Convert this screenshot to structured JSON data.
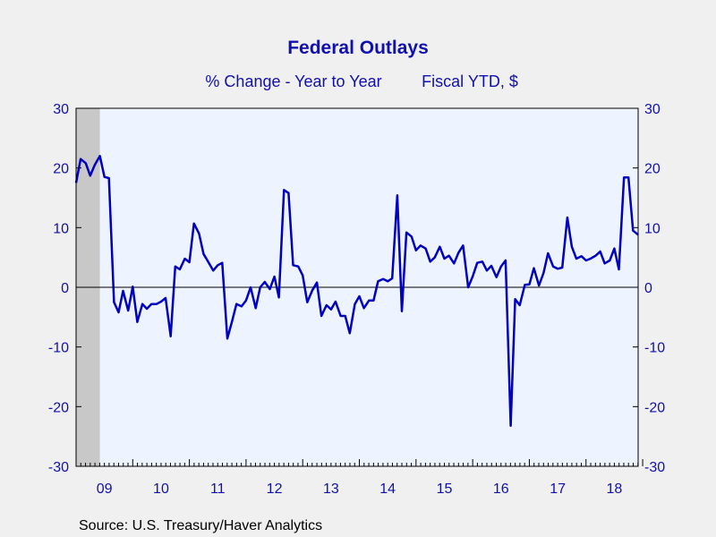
{
  "colors": {
    "background": "#f0f0f0",
    "plot_background": "#eef4ff",
    "text": "#1010b0",
    "line": "#0000c0",
    "recession_shade": "#c8c8c8",
    "frame": "#000000"
  },
  "source_text": "Source:  U.S. Treasury/Haver Analytics",
  "chart_data": {
    "type": "line",
    "title": "Federal Outlays",
    "subtitle": [
      "% Change - Year to Year",
      "Fiscal YTD, $"
    ],
    "xlabel": "",
    "ylabel": "",
    "x_tick_labels": [
      "09",
      "10",
      "11",
      "12",
      "13",
      "14",
      "15",
      "16",
      "17",
      "18"
    ],
    "x_range": [
      2009.0,
      2018.92
    ],
    "ylim": [
      -30,
      30
    ],
    "y_ticks": [
      30,
      20,
      10,
      0,
      -10,
      -20,
      -30
    ],
    "secondary_y_axis": true,
    "zero_line": true,
    "grid": false,
    "shaded_period": [
      2009.0,
      2009.42
    ],
    "series": [
      {
        "color": "#0000c0",
        "x": [
          2009.0,
          2009.08,
          2009.17,
          2009.25,
          2009.33,
          2009.42,
          2009.5,
          2009.58,
          2009.67,
          2009.75,
          2009.83,
          2009.92,
          2010.0,
          2010.08,
          2010.17,
          2010.25,
          2010.33,
          2010.42,
          2010.5,
          2010.58,
          2010.67,
          2010.75,
          2010.83,
          2010.92,
          2011.0,
          2011.08,
          2011.17,
          2011.25,
          2011.33,
          2011.42,
          2011.5,
          2011.58,
          2011.67,
          2011.75,
          2011.83,
          2011.92,
          2012.0,
          2012.08,
          2012.17,
          2012.25,
          2012.33,
          2012.42,
          2012.5,
          2012.58,
          2012.67,
          2012.75,
          2012.83,
          2012.92,
          2013.0,
          2013.08,
          2013.17,
          2013.25,
          2013.33,
          2013.42,
          2013.5,
          2013.58,
          2013.67,
          2013.75,
          2013.83,
          2013.92,
          2014.0,
          2014.08,
          2014.17,
          2014.25,
          2014.33,
          2014.42,
          2014.5,
          2014.58,
          2014.67,
          2014.75,
          2014.83,
          2014.92,
          2015.0,
          2015.08,
          2015.17,
          2015.25,
          2015.33,
          2015.42,
          2015.5,
          2015.58,
          2015.67,
          2015.75,
          2015.83,
          2015.92,
          2016.0,
          2016.08,
          2016.17,
          2016.25,
          2016.33,
          2016.42,
          2016.5,
          2016.58,
          2016.67,
          2016.75,
          2016.83,
          2016.92,
          2017.0,
          2017.08,
          2017.17,
          2017.25,
          2017.33,
          2017.42,
          2017.5,
          2017.58,
          2017.67,
          2017.75,
          2017.83,
          2017.92,
          2018.0,
          2018.08,
          2018.17,
          2018.25,
          2018.33,
          2018.42,
          2018.5,
          2018.58,
          2018.67,
          2018.75,
          2018.83,
          2018.92
        ],
        "values": [
          17.5,
          21.5,
          20.8,
          18.7,
          20.5,
          22.0,
          18.5,
          18.3,
          -2.5,
          -4.2,
          -0.6,
          -3.9,
          0.1,
          -5.8,
          -2.8,
          -3.6,
          -2.8,
          -2.8,
          -2.4,
          -1.8,
          -8.2,
          3.5,
          3.0,
          4.8,
          4.2,
          10.7,
          9.0,
          5.6,
          4.3,
          2.8,
          3.7,
          4.1,
          -8.6,
          -5.8,
          -2.8,
          -3.2,
          -2.2,
          0.0,
          -3.5,
          0.0,
          0.9,
          -0.3,
          1.8,
          -1.7,
          16.3,
          15.8,
          3.7,
          3.5,
          2.0,
          -2.5,
          -0.5,
          0.8,
          -4.8,
          -3.0,
          -3.7,
          -2.4,
          -4.8,
          -4.8,
          -7.7,
          -2.8,
          -1.5,
          -3.5,
          -2.2,
          -2.2,
          1.0,
          1.4,
          1.0,
          1.5,
          15.4,
          -4.0,
          9.2,
          8.5,
          6.2,
          7.0,
          6.5,
          4.3,
          5.0,
          6.8,
          4.8,
          5.3,
          4.0,
          5.8,
          7.0,
          0.0,
          1.8,
          4.1,
          4.3,
          2.8,
          3.6,
          1.7,
          3.5,
          4.5,
          -23.2,
          -2.0,
          -3.0,
          0.4,
          0.5,
          3.2,
          0.3,
          2.4,
          5.7,
          3.5,
          3.1,
          3.3,
          11.7,
          6.8,
          4.8,
          5.2,
          4.5,
          4.8,
          5.3,
          6.0,
          4.0,
          4.5,
          6.5,
          3.0,
          18.4,
          18.4,
          9.5,
          8.8
        ]
      }
    ]
  }
}
